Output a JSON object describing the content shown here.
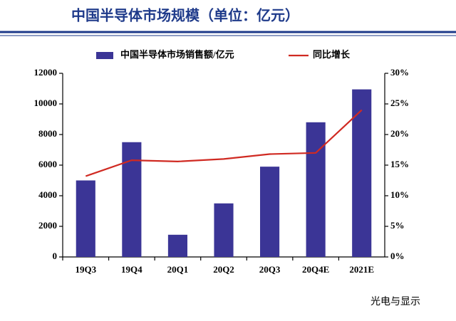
{
  "chart_data": {
    "type": "combo",
    "title": "中国半导体市场规模（单位：亿元）",
    "categories": [
      "19Q3",
      "19Q4",
      "20Q1",
      "20Q2",
      "20Q3",
      "20Q4E",
      "2021E"
    ],
    "series": [
      {
        "name": "中国半导体市场销售额/亿元",
        "type": "bar",
        "color": "#3b3596",
        "values": [
          5000,
          7500,
          1450,
          3500,
          5900,
          8800,
          10950
        ]
      },
      {
        "name": "同比增长",
        "type": "line",
        "axis": "y2",
        "color": "#d02a22",
        "values": [
          13.2,
          15.8,
          15.6,
          16.0,
          16.8,
          17.0,
          24.0
        ]
      }
    ],
    "ylim": [
      0,
      12000
    ],
    "yticks": [
      0,
      2000,
      4000,
      6000,
      8000,
      10000,
      12000
    ],
    "y2lim": [
      0,
      30
    ],
    "y2ticks": [
      {
        "value": 0,
        "label": "0%"
      },
      {
        "value": 5,
        "label": "5%"
      },
      {
        "value": 10,
        "label": "10%"
      },
      {
        "value": 15,
        "label": "15%"
      },
      {
        "value": 20,
        "label": "20%"
      },
      {
        "value": 25,
        "label": "25%"
      },
      {
        "value": 30,
        "label": "30%"
      }
    ],
    "legend": "top",
    "watermark": "光电与显示"
  }
}
